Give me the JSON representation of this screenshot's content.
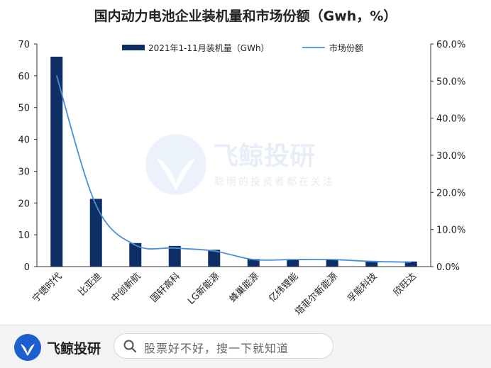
{
  "chart_data": {
    "type": "bar",
    "title": "国内动力电池企业装机量和市场份额（Gwh，%）",
    "categories": [
      "宁德时代",
      "比亚迪",
      "中创新航",
      "国轩高科",
      "LG新能源",
      "蜂巢能源",
      "亿纬锂能",
      "塔菲尔新能源",
      "孚能科技",
      "欣旺达"
    ],
    "series": [
      {
        "name": "2021年1-11月装机量（GWh）",
        "type": "bar",
        "axis": "left",
        "color": "#0d2f66",
        "values": [
          66.0,
          21.3,
          7.4,
          6.5,
          5.3,
          2.4,
          2.3,
          2.3,
          1.8,
          1.6
        ]
      },
      {
        "name": "市场份额",
        "type": "line",
        "axis": "right",
        "color": "#4a90d9",
        "values": [
          51.5,
          16.6,
          5.8,
          5.0,
          4.2,
          1.9,
          1.9,
          1.9,
          1.4,
          1.2
        ]
      }
    ],
    "y_left": {
      "min": 0,
      "max": 70,
      "ticks": [
        "0",
        "10",
        "20",
        "30",
        "40",
        "50",
        "60",
        "70"
      ]
    },
    "y_right": {
      "min": 0,
      "max": 60,
      "ticks": [
        "0.0%",
        "10.0%",
        "20.0%",
        "30.0%",
        "40.0%",
        "50.0%",
        "60.0%"
      ]
    },
    "legend_position": "top",
    "grid": false
  },
  "watermark": {
    "brand": "飞鲸投研",
    "slogan": "聪明的投资者都在关注"
  },
  "footer": {
    "brand": "飞鲸投研",
    "search_placeholder": "股票好不好，搜一下就知道"
  }
}
